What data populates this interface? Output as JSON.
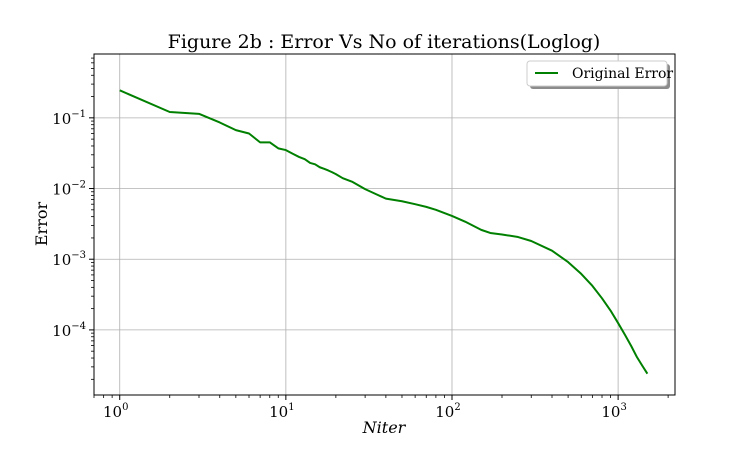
{
  "chart_data": {
    "type": "line",
    "title": "Figure 2b : Error Vs No of iterations(Loglog)",
    "xlabel": "Niter",
    "ylabel": "Error",
    "xscale": "log",
    "yscale": "log",
    "xlim": [
      0.7,
      2200
    ],
    "ylim": [
      1.2e-05,
      0.8
    ],
    "grid": true,
    "legend_position": "top-right",
    "x_ticks": [
      {
        "value": 1,
        "base": "10",
        "exp": "0"
      },
      {
        "value": 10,
        "base": "10",
        "exp": "1"
      },
      {
        "value": 100,
        "base": "10",
        "exp": "2"
      },
      {
        "value": 1000,
        "base": "10",
        "exp": "3"
      }
    ],
    "y_ticks": [
      {
        "value": 0.1,
        "base": "10",
        "exp": "−1"
      },
      {
        "value": 0.01,
        "base": "10",
        "exp": "−2"
      },
      {
        "value": 0.001,
        "base": "10",
        "exp": "−3"
      },
      {
        "value": 0.0001,
        "base": "10",
        "exp": "−4"
      }
    ],
    "series": [
      {
        "name": "Original Error",
        "color": "#008000",
        "x": [
          1,
          2,
          3,
          4,
          5,
          6,
          7,
          8,
          9,
          10,
          11,
          12,
          13,
          14,
          15,
          16,
          17,
          18,
          19,
          20,
          22,
          25,
          30,
          35,
          40,
          50,
          60,
          70,
          80,
          100,
          120,
          150,
          170,
          200,
          250,
          300,
          400,
          500,
          600,
          700,
          800,
          900,
          1000,
          1100,
          1200,
          1300,
          1400,
          1500
        ],
        "y": [
          0.245,
          0.121,
          0.114,
          0.086,
          0.067,
          0.06,
          0.045,
          0.045,
          0.037,
          0.035,
          0.031,
          0.028,
          0.026,
          0.023,
          0.022,
          0.02,
          0.019,
          0.018,
          0.017,
          0.016,
          0.014,
          0.0125,
          0.0098,
          0.0083,
          0.0072,
          0.0066,
          0.006,
          0.0055,
          0.005,
          0.0041,
          0.0034,
          0.0026,
          0.00235,
          0.00224,
          0.00206,
          0.00181,
          0.00132,
          0.00091,
          0.00062,
          0.00042,
          0.00028,
          0.000188,
          0.000125,
          8.5e-05,
          5.9e-05,
          4.1e-05,
          3.1e-05,
          2.4e-05
        ]
      }
    ]
  }
}
